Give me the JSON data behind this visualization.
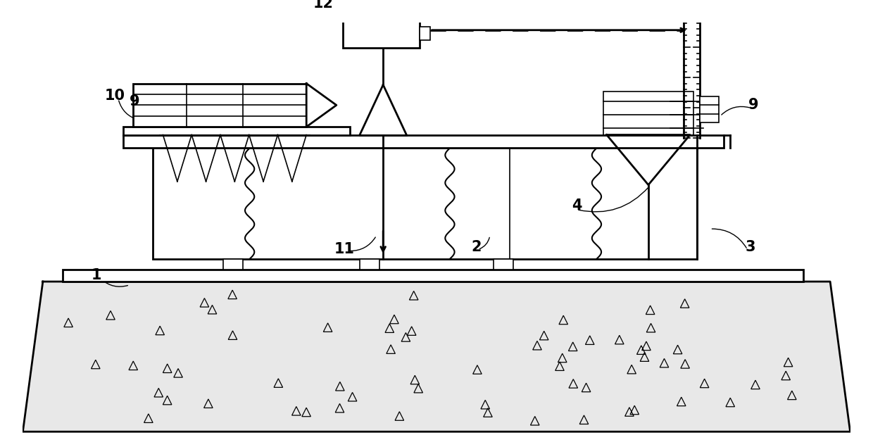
{
  "bg_color": "#ffffff",
  "line_color": "#000000",
  "fig_width": 12.4,
  "fig_height": 6.18,
  "dpi": 100
}
